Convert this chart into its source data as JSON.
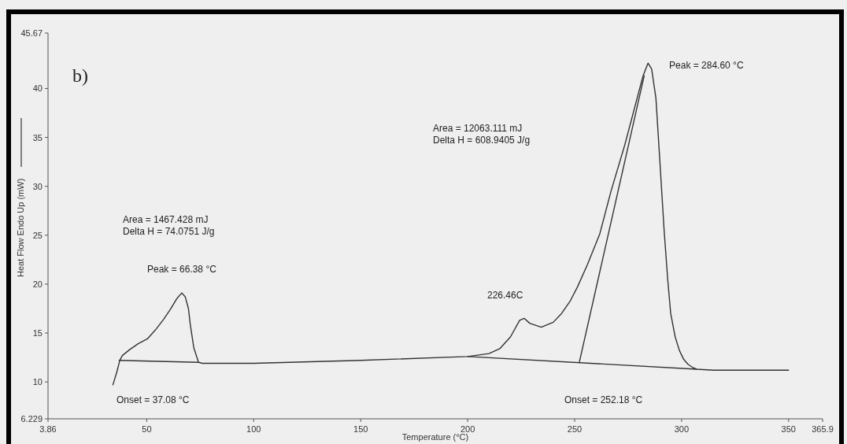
{
  "chart_data": {
    "type": "line",
    "xlabel": "Temperature (°C)",
    "ylabel": "Heat Flow Endo Up (mW)",
    "xlim": [
      3.86,
      365.9
    ],
    "xticks": [
      3.86,
      50,
      100,
      150,
      200,
      250,
      300,
      350,
      365.9
    ],
    "ylim": [
      6.229,
      45.67
    ],
    "yticks": [
      6.229,
      10,
      15,
      20,
      25,
      30,
      35,
      40,
      45.67
    ],
    "marker": "none",
    "line_style": "solid",
    "series": [
      {
        "color": "#333333",
        "x": [
          34.2,
          36.0,
          37.4,
          38.6,
          42,
          46,
          50.3,
          54,
          57.9,
          61,
          64,
          66.4,
          68,
          69.5,
          70.4,
          72,
          74.2,
          76,
          100,
          150,
          200,
          210,
          215,
          220,
          224.3,
          226.5,
          229,
          234.4,
          240,
          243.9,
          248,
          251.3,
          256,
          261.7,
          267,
          273.4,
          278,
          282,
          284.3,
          286,
          288,
          290,
          291.8,
          293.5,
          294.9,
          297,
          299,
          301,
          303,
          305,
          307,
          315,
          330,
          350
        ],
        "values": [
          9.7,
          11.0,
          12.2,
          12.7,
          13.3,
          13.9,
          14.4,
          15.3,
          16.4,
          17.4,
          18.5,
          19.1,
          18.7,
          17.5,
          15.8,
          13.5,
          12.0,
          11.9,
          11.9,
          12.2,
          12.6,
          12.9,
          13.4,
          14.6,
          16.3,
          16.5,
          16.0,
          15.6,
          16.1,
          17.0,
          18.3,
          19.7,
          22.0,
          25.1,
          29.5,
          34.2,
          38.0,
          41.3,
          42.6,
          42.0,
          39.0,
          32.0,
          25.6,
          20.5,
          17.0,
          14.6,
          13.2,
          12.3,
          11.8,
          11.5,
          11.3,
          11.2,
          11.2,
          11.2
        ]
      },
      {
        "color": "#333333",
        "x": [
          37.08,
          74.2
        ],
        "values": [
          12.2,
          12.0
        ]
      },
      {
        "color": "#333333",
        "x": [
          200,
          307
        ],
        "values": [
          12.6,
          11.3
        ]
      },
      {
        "color": "#333333",
        "x": [
          252.18,
          282.5
        ],
        "values": [
          12.0,
          41.3
        ]
      }
    ],
    "annotations": [
      "b)",
      "Area = 1467.428 mJ",
      "Delta H = 74.0751 J/g",
      "Area = 12063.111 mJ",
      "Delta H = 608.9405 J/g",
      "Onset = 37.08 °C",
      "Onset = 252.18 °C",
      {
        "text": "Peak = 66.38 °C",
        "x": 66.38,
        "y": 19.1
      },
      {
        "text": "226.46C",
        "x": 226.46,
        "y": 16.5
      },
      {
        "text": "Peak = 284.60 °C",
        "x": 284.6,
        "y": 42.6
      }
    ]
  }
}
